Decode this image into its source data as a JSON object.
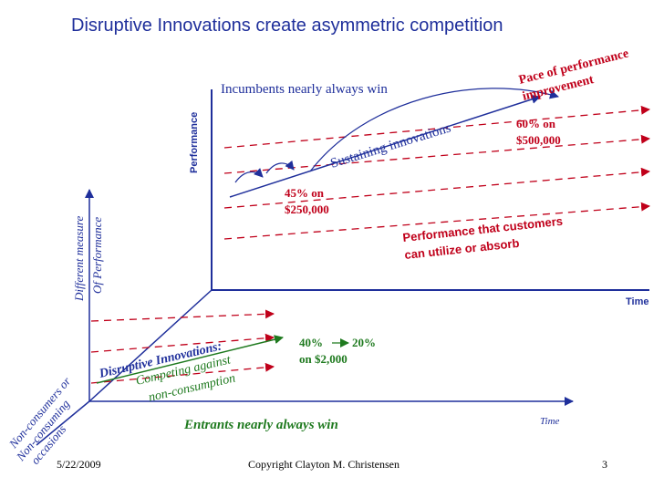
{
  "title": "Disruptive Innovations create asymmetric competition",
  "upper_plane": {
    "y_axis_label": "Performance",
    "x_axis_label": "Time",
    "incumbents_label": "Incumbents nearly always win",
    "sustaining_label": "Sustaining innovations",
    "pace_label_line1": "Pace of performance",
    "pace_label_line2": "improvement",
    "price_high_line1": "60% on",
    "price_high_line2": "$500,000",
    "price_mid_line1": "45% on",
    "price_mid_line2": "$250,000",
    "absorb_line1": "Performance that customers",
    "absorb_line2": "can utilize or absorb"
  },
  "lower_plane": {
    "y_axis_line1": "Different measure",
    "y_axis_line2": "Of Performance",
    "depth_axis_line1": "Non-consumers or",
    "depth_axis_line2": "Non-consuming",
    "depth_axis_line3": "occasions",
    "x_axis_label": "Time",
    "disruptive_line1": "Disruptive Innovations:",
    "disruptive_line2": "Competing against",
    "disruptive_line3": "non-consumption",
    "price_low_a": "40%",
    "price_low_b": "20%",
    "price_low_c": "on $2,000",
    "entrants_label": "Entrants nearly always win"
  },
  "footer": {
    "date": "5/22/2009",
    "copyright": "Copyright Clayton M. Christensen",
    "page": "3"
  },
  "colors": {
    "axis": "#1f2f9b",
    "dashed": "#c0001a",
    "green": "#1f7a1f"
  }
}
